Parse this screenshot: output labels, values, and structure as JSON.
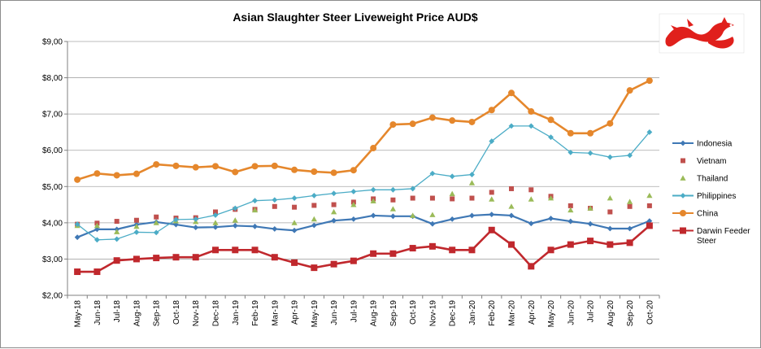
{
  "chart_data": {
    "type": "line",
    "title": "Asian Slaughter Steer Liveweight Price AUD$",
    "xlabel": "",
    "ylabel": "",
    "ylim": [
      2,
      9
    ],
    "yticks": [
      "$2,00",
      "$3,00",
      "$4,00",
      "$5,00",
      "$6,00",
      "$7,00",
      "$8,00",
      "$9,00"
    ],
    "grid": true,
    "legend_position": "right",
    "categories": [
      "May-18",
      "Jun-18",
      "Jul-18",
      "Aug-18",
      "Sep-18",
      "Oct-18",
      "Nov-18",
      "Dec-18",
      "Jan-19",
      "Feb-19",
      "Mar-19",
      "Apr-19",
      "May-19",
      "Jun-19",
      "Jul-19",
      "Aug-19",
      "Sep-19",
      "Oct-19",
      "Nov-19",
      "Dec-19",
      "Jan-20",
      "Feb-20",
      "Mar-20",
      "Apr-20",
      "May-20",
      "Jun-20",
      "Jul-20",
      "Aug-20",
      "Sep-20",
      "Oct-20"
    ],
    "series": [
      {
        "name": "Indonesia",
        "color": "#3f78b5",
        "style": "line-diamond",
        "values": [
          3.6,
          3.82,
          3.82,
          3.95,
          4.02,
          3.95,
          3.87,
          3.88,
          3.92,
          3.9,
          3.83,
          3.79,
          3.93,
          4.06,
          4.1,
          4.2,
          4.18,
          4.18,
          3.97,
          4.1,
          4.2,
          4.23,
          4.2,
          3.98,
          4.12,
          4.04,
          3.97,
          3.84,
          3.84,
          4.05
        ]
      },
      {
        "name": "Vietnam",
        "color": "#c0504d",
        "style": "square-marker",
        "values": [
          3.96,
          3.99,
          4.04,
          4.07,
          4.16,
          4.13,
          4.14,
          4.3,
          4.37,
          4.37,
          4.45,
          4.43,
          4.48,
          4.5,
          4.57,
          4.66,
          4.63,
          4.68,
          4.68,
          4.66,
          4.68,
          4.84,
          4.94,
          4.91,
          4.73,
          4.47,
          4.4,
          4.3,
          4.45,
          4.47
        ]
      },
      {
        "name": "Thailand",
        "color": "#9bbb59",
        "style": "triangle-marker",
        "values": [
          3.92,
          3.92,
          3.75,
          3.9,
          4.0,
          4.05,
          4.03,
          4.0,
          4.07,
          4.35,
          null,
          4.0,
          4.1,
          4.3,
          4.5,
          4.6,
          4.38,
          4.2,
          4.22,
          4.8,
          5.1,
          4.65,
          4.45,
          4.65,
          4.68,
          4.35,
          4.4,
          4.68,
          4.58,
          4.75
        ]
      },
      {
        "name": "Philippines",
        "color": "#4bacc6",
        "style": "line-diamond",
        "values": [
          3.96,
          3.53,
          3.55,
          3.74,
          3.73,
          4.09,
          4.1,
          4.21,
          4.4,
          4.61,
          4.63,
          4.68,
          4.75,
          4.81,
          4.86,
          4.91,
          4.91,
          4.94,
          5.36,
          5.28,
          5.33,
          6.25,
          6.67,
          6.67,
          6.36,
          5.94,
          5.92,
          5.81,
          5.86,
          6.5
        ]
      },
      {
        "name": "China",
        "color": "#e5872c",
        "style": "line-circle",
        "values": [
          5.19,
          5.36,
          5.31,
          5.35,
          5.61,
          5.57,
          5.53,
          5.56,
          5.4,
          5.56,
          5.57,
          5.46,
          5.41,
          5.38,
          5.45,
          6.06,
          6.71,
          6.73,
          6.9,
          6.82,
          6.78,
          7.11,
          7.58,
          7.07,
          6.84,
          6.47,
          6.47,
          6.74,
          7.65,
          7.92
        ]
      },
      {
        "name": "Darwin Feeder Steer",
        "color": "#c0282d",
        "style": "line-square",
        "values": [
          2.65,
          2.65,
          2.96,
          3.0,
          3.03,
          3.05,
          3.05,
          3.25,
          3.25,
          3.25,
          3.05,
          2.9,
          2.76,
          2.86,
          2.95,
          3.15,
          3.15,
          3.3,
          3.35,
          3.25,
          3.25,
          3.8,
          3.4,
          2.8,
          3.25,
          3.4,
          3.5,
          3.4,
          3.45,
          3.92
        ]
      }
    ]
  },
  "logo": {
    "name": "red-dragon-logo",
    "color": "#e0201c"
  }
}
